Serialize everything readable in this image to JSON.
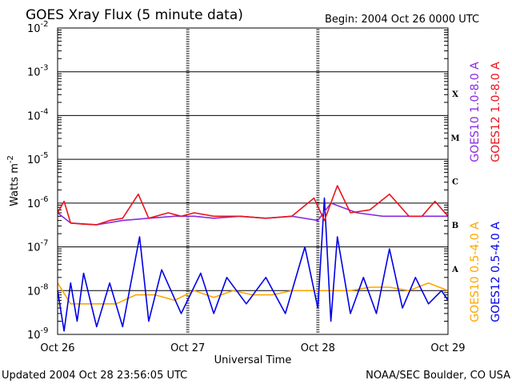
{
  "chart_data": {
    "type": "line",
    "title": "GOES Xray Flux (5 minute data)",
    "begin_label": "Begin:  2004 Oct 26 0000 UTC",
    "ylabel_main": "Watts m",
    "ylabel_sup": "-2",
    "xlabel": "Universal Time",
    "footer_left": "Updated 2004 Oct 28 23:56:05 UTC",
    "footer_right": "NOAA/SEC Boulder, CO USA",
    "y_scale": "log",
    "ylim": [
      1e-09,
      0.01
    ],
    "y_ticks": [
      {
        "value": 1e-09,
        "base": "10",
        "exp": "-9"
      },
      {
        "value": 1e-08,
        "base": "10",
        "exp": "-8"
      },
      {
        "value": 1e-07,
        "base": "10",
        "exp": "-7"
      },
      {
        "value": 1e-06,
        "base": "10",
        "exp": "-6"
      },
      {
        "value": 1e-05,
        "base": "10",
        "exp": "-5"
      },
      {
        "value": 0.0001,
        "base": "10",
        "exp": "-4"
      },
      {
        "value": 0.001,
        "base": "10",
        "exp": "-3"
      },
      {
        "value": 0.01,
        "base": "10",
        "exp": "-2"
      }
    ],
    "x_ticks": [
      "Oct 26",
      "Oct 27",
      "Oct 28",
      "Oct 29"
    ],
    "flare_classes": [
      {
        "label": "A",
        "min": 1e-08
      },
      {
        "label": "B",
        "min": 1e-07
      },
      {
        "label": "C",
        "min": 1e-06
      },
      {
        "label": "M",
        "min": 1e-05
      },
      {
        "label": "X",
        "min": 0.0001
      }
    ],
    "grid": true,
    "legend_position": "right-vertical",
    "series": [
      {
        "name": "GOES10 1.0-8.0 A",
        "color": "#8a2be2",
        "x": [
          0,
          0.1,
          0.3,
          0.5,
          0.7,
          0.9,
          1.05,
          1.2,
          1.4,
          1.6,
          1.8,
          2.0,
          2.1,
          2.3,
          2.5,
          2.7,
          2.9,
          3.0
        ],
        "y": [
          6e-07,
          3.5e-07,
          3.2e-07,
          4e-07,
          4.5e-07,
          5e-07,
          5e-07,
          4.5e-07,
          5e-07,
          4.5e-07,
          5e-07,
          4e-07,
          1e-06,
          6e-07,
          5e-07,
          5e-07,
          5e-07,
          5e-07
        ]
      },
      {
        "name": "GOES12 1.0-8.0 A",
        "color": "#e8141c",
        "x": [
          0,
          0.05,
          0.1,
          0.2,
          0.3,
          0.4,
          0.5,
          0.62,
          0.7,
          0.85,
          0.95,
          1.05,
          1.2,
          1.4,
          1.6,
          1.8,
          1.97,
          2.05,
          2.15,
          2.25,
          2.4,
          2.55,
          2.7,
          2.8,
          2.9,
          3.0
        ],
        "y": [
          6e-07,
          1.1e-06,
          3.5e-07,
          3.3e-07,
          3.2e-07,
          4e-07,
          4.5e-07,
          1.6e-06,
          4.5e-07,
          6e-07,
          5e-07,
          6e-07,
          5e-07,
          5e-07,
          4.5e-07,
          5e-07,
          1.3e-06,
          4e-07,
          2.5e-06,
          6e-07,
          7e-07,
          1.6e-06,
          5e-07,
          5e-07,
          1.1e-06,
          5e-07
        ]
      },
      {
        "name": "GOES10 0.5-4.0 A",
        "color": "#ffa500",
        "x": [
          0,
          0.1,
          0.2,
          0.3,
          0.45,
          0.6,
          0.75,
          0.9,
          1.05,
          1.2,
          1.35,
          1.5,
          1.65,
          1.8,
          1.95,
          2.1,
          2.25,
          2.4,
          2.55,
          2.7,
          2.85,
          3.0
        ],
        "y": [
          1.5e-08,
          5e-09,
          5e-09,
          5e-09,
          5e-09,
          8e-09,
          8e-09,
          6e-09,
          1e-08,
          7e-09,
          1e-08,
          8e-09,
          8e-09,
          1e-08,
          1e-08,
          1e-08,
          1e-08,
          1.2e-08,
          1.2e-08,
          1e-08,
          1.5e-08,
          1e-08
        ]
      },
      {
        "name": "GOES12 0.5-4.0 A",
        "color": "#0000e6",
        "x": [
          0,
          0.05,
          0.1,
          0.15,
          0.2,
          0.3,
          0.4,
          0.5,
          0.63,
          0.7,
          0.8,
          0.95,
          1.1,
          1.2,
          1.3,
          1.45,
          1.6,
          1.75,
          1.9,
          2.0,
          2.05,
          2.1,
          2.15,
          2.25,
          2.35,
          2.45,
          2.55,
          2.65,
          2.75,
          2.85,
          2.95,
          3.0
        ],
        "y": [
          1e-08,
          1.2e-09,
          1.5e-08,
          2e-09,
          2.5e-08,
          1.5e-09,
          1.5e-08,
          1.5e-09,
          1.7e-07,
          2e-09,
          3e-08,
          3e-09,
          2.5e-08,
          3e-09,
          2e-08,
          5e-09,
          2e-08,
          3e-09,
          1e-07,
          4e-09,
          1.3e-06,
          2e-09,
          1.7e-07,
          3e-09,
          2e-08,
          3e-09,
          9e-08,
          4e-09,
          2e-08,
          5e-09,
          1e-08,
          6e-09
        ]
      }
    ]
  }
}
